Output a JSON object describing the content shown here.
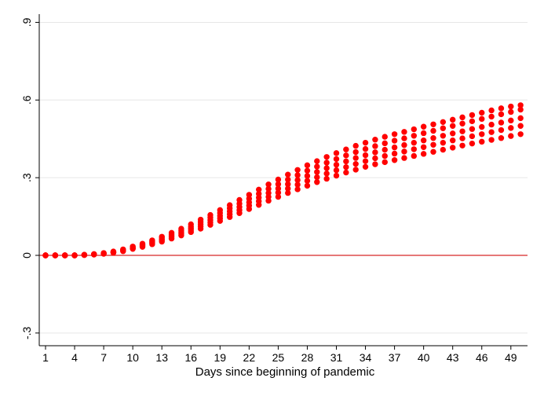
{
  "chart_data": {
    "type": "scatter",
    "xlabel": "Days since beginning of pandemic",
    "ylabel": "",
    "xlim": [
      1,
      50
    ],
    "ylim": [
      -0.3,
      0.9
    ],
    "x_ticks": [
      1,
      4,
      7,
      10,
      13,
      16,
      19,
      22,
      25,
      28,
      31,
      34,
      37,
      40,
      43,
      46,
      49
    ],
    "x_tick_labels": [
      "1",
      "4",
      "7",
      "10",
      "13",
      "16",
      "19",
      "22",
      "25",
      "28",
      "31",
      "34",
      "37",
      "40",
      "43",
      "46",
      "49"
    ],
    "y_ticks": [
      -0.3,
      0,
      0.3,
      0.6,
      0.9
    ],
    "y_tick_labels": [
      "-.3",
      "0",
      ".3",
      ".6",
      ".9"
    ],
    "grid": "horizontal",
    "reference_line": {
      "y": 0,
      "color": "#d62728"
    },
    "marker_color": "#ff0000",
    "days": [
      1,
      2,
      3,
      4,
      5,
      6,
      7,
      8,
      9,
      10,
      11,
      12,
      13,
      14,
      15,
      16,
      17,
      18,
      19,
      20,
      21,
      22,
      23,
      24,
      25,
      26,
      27,
      28,
      29,
      30,
      31,
      32,
      33,
      34,
      35,
      36,
      37,
      38,
      39,
      40,
      41,
      42,
      43,
      44,
      45,
      46,
      47,
      48,
      49,
      50
    ],
    "series": [
      {
        "values": [
          0,
          0,
          0,
          0,
          0.001,
          0.003,
          0.006,
          0.01,
          0.016,
          0.025,
          0.033,
          0.043,
          0.053,
          0.065,
          0.077,
          0.09,
          0.103,
          0.118,
          0.133,
          0.148,
          0.163,
          0.179,
          0.195,
          0.211,
          0.226,
          0.241,
          0.255,
          0.269,
          0.283,
          0.296,
          0.308,
          0.32,
          0.331,
          0.342,
          0.352,
          0.36,
          0.368,
          0.376,
          0.384,
          0.392,
          0.4,
          0.408,
          0.416,
          0.424,
          0.432,
          0.439,
          0.446,
          0.453,
          0.461,
          0.468
        ]
      },
      {
        "values": [
          0,
          0,
          0,
          0,
          0.002,
          0.004,
          0.007,
          0.011,
          0.018,
          0.027,
          0.036,
          0.047,
          0.058,
          0.07,
          0.083,
          0.097,
          0.112,
          0.127,
          0.143,
          0.159,
          0.175,
          0.192,
          0.209,
          0.226,
          0.242,
          0.258,
          0.273,
          0.288,
          0.302,
          0.316,
          0.329,
          0.341,
          0.353,
          0.364,
          0.375,
          0.384,
          0.393,
          0.401,
          0.41,
          0.418,
          0.427,
          0.435,
          0.444,
          0.452,
          0.46,
          0.468,
          0.476,
          0.484,
          0.492,
          0.5
        ]
      },
      {
        "values": [
          0,
          0,
          0,
          0,
          0.002,
          0.004,
          0.007,
          0.012,
          0.02,
          0.029,
          0.039,
          0.05,
          0.062,
          0.075,
          0.089,
          0.104,
          0.12,
          0.136,
          0.153,
          0.17,
          0.187,
          0.205,
          0.223,
          0.241,
          0.258,
          0.275,
          0.291,
          0.307,
          0.322,
          0.337,
          0.35,
          0.363,
          0.376,
          0.387,
          0.398,
          0.408,
          0.417,
          0.426,
          0.435,
          0.444,
          0.453,
          0.462,
          0.471,
          0.479,
          0.488,
          0.496,
          0.505,
          0.513,
          0.521,
          0.53
        ]
      },
      {
        "values": [
          0,
          0,
          0,
          0,
          0.002,
          0.004,
          0.008,
          0.013,
          0.021,
          0.031,
          0.042,
          0.054,
          0.067,
          0.081,
          0.096,
          0.112,
          0.129,
          0.146,
          0.164,
          0.182,
          0.2,
          0.219,
          0.238,
          0.257,
          0.275,
          0.293,
          0.31,
          0.327,
          0.343,
          0.358,
          0.372,
          0.386,
          0.399,
          0.411,
          0.422,
          0.433,
          0.443,
          0.452,
          0.462,
          0.472,
          0.481,
          0.491,
          0.5,
          0.509,
          0.518,
          0.527,
          0.536,
          0.545,
          0.554,
          0.563
        ]
      },
      {
        "values": [
          0,
          0,
          0,
          0,
          0.002,
          0.005,
          0.009,
          0.015,
          0.023,
          0.034,
          0.045,
          0.058,
          0.072,
          0.087,
          0.103,
          0.12,
          0.138,
          0.156,
          0.175,
          0.194,
          0.214,
          0.234,
          0.254,
          0.274,
          0.293,
          0.312,
          0.33,
          0.348,
          0.364,
          0.38,
          0.395,
          0.409,
          0.423,
          0.435,
          0.447,
          0.458,
          0.468,
          0.477,
          0.487,
          0.497,
          0.506,
          0.515,
          0.524,
          0.533,
          0.542,
          0.551,
          0.56,
          0.568,
          0.575,
          0.58
        ]
      }
    ]
  }
}
